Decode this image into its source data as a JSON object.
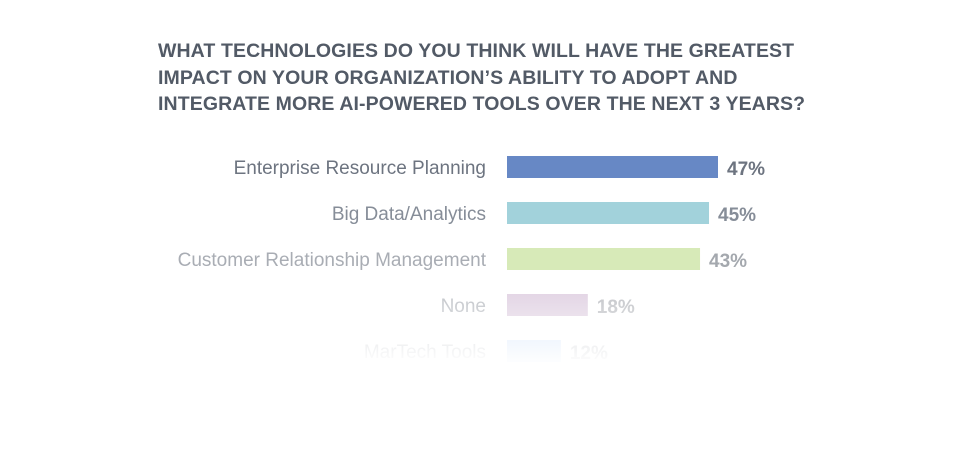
{
  "chart_data": {
    "type": "bar",
    "orientation": "horizontal",
    "title_lines": [
      "WHAT TECHNOLOGIES DO YOU THINK WILL HAVE THE GREATEST",
      "IMPACT ON YOUR ORGANIZATION’S ABILITY TO ADOPT AND",
      "INTEGRATE MORE AI-POWERED TOOLS OVER THE NEXT 3 YEARS?"
    ],
    "categories": [
      "Enterprise Resource Planning",
      "Big Data/Analytics",
      "Customer Relationship Management",
      "None",
      "MarTech Tools"
    ],
    "values": [
      47,
      45,
      43,
      18,
      12
    ],
    "value_labels": [
      "47%",
      "45%",
      "43%",
      "18%",
      "12%"
    ],
    "unit": "%",
    "colors": [
      "#6788c5",
      "#a2d2db",
      "#d7eab8",
      "#e2d4e4",
      "#dbe9fb"
    ],
    "category_label_colors": [
      "#6d7480",
      "#868d98",
      "#a9adb4",
      "#c1c4c9",
      "#d0d2d6"
    ],
    "value_label_colors": [
      "#6d7480",
      "#868d98",
      "#a4a8ae",
      "#c3c5c9",
      "#d0d2d6"
    ],
    "grid": false,
    "legend": "none",
    "xlim": [
      0,
      47
    ]
  }
}
